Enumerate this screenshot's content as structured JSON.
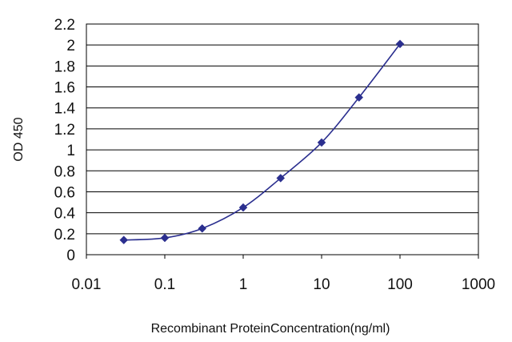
{
  "chart_data": {
    "type": "scatter",
    "title": "",
    "xlabel": "Recombinant ProteinConcentration(ng/ml)",
    "ylabel": "OD 450",
    "x_scale": "log",
    "xlim": [
      0.01,
      1000
    ],
    "ylim": [
      0,
      2.2
    ],
    "grid": {
      "horizontal": true,
      "vertical": false
    },
    "legend": "none",
    "x_tick_labels": [
      "0.01",
      "0.1",
      "1",
      "10",
      "100",
      "1000"
    ],
    "y_tick_labels": [
      "0",
      "0.2",
      "0.4",
      "0.6",
      "0.8",
      "1",
      "1.2",
      "1.4",
      "1.6",
      "1.8",
      "2",
      "2.2"
    ],
    "series": [
      {
        "x": [
          0.03,
          0.1,
          0.3,
          1,
          3,
          10,
          30,
          100
        ],
        "y": [
          0.14,
          0.16,
          0.25,
          0.45,
          0.73,
          1.07,
          1.5,
          2.01
        ],
        "color": "#2b2f8f",
        "marker": "diamond",
        "line": "smooth"
      }
    ],
    "colors": {
      "plot_background": "#ffffff",
      "grid": "#000000",
      "series": "#2b2f8f"
    }
  }
}
